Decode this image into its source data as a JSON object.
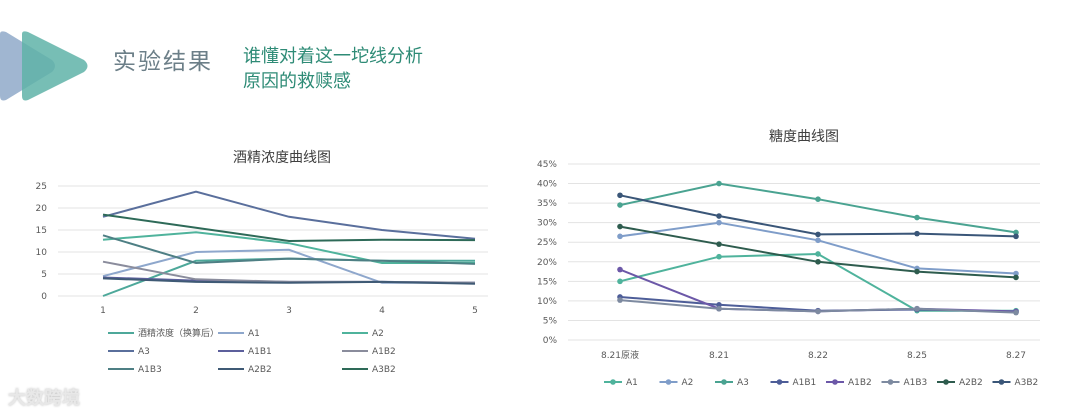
{
  "header": {
    "title": "实验结果",
    "caption_line1": "谁懂对着这一坨线分析",
    "caption_line2": "原因的救赎感"
  },
  "watermark": "大数跨境",
  "colors": {
    "accent_teal": "#2e8b76",
    "title_gray": "#6c7f88",
    "logo_teal": "#5fb3a8",
    "logo_blue": "#8fa9c9"
  },
  "chart_data": [
    {
      "type": "line",
      "title": "酒精浓度曲线图",
      "x": [
        "1",
        "2",
        "3",
        "4",
        "5"
      ],
      "ylim": [
        0,
        25
      ],
      "yticks": [
        "0",
        "5",
        "10",
        "15",
        "20",
        "25"
      ],
      "grid": true,
      "legend": "bottom",
      "series": [
        {
          "name": "酒精浓度（换算后）",
          "color": "#4da89a",
          "values": [
            0,
            8,
            8.5,
            8,
            8
          ]
        },
        {
          "name": "A1",
          "color": "#8ea7cc",
          "values": [
            4.5,
            10,
            10.5,
            3,
            3
          ]
        },
        {
          "name": "A2",
          "color": "#4fb39c",
          "values": [
            12.8,
            14.5,
            12,
            7.5,
            7.5
          ]
        },
        {
          "name": "A3",
          "color": "#5a6f9c",
          "values": [
            18,
            23.7,
            18,
            15,
            13
          ]
        },
        {
          "name": "A1B1",
          "color": "#5c5f9c",
          "values": [
            4.2,
            3.5,
            3.2,
            3.2,
            3
          ]
        },
        {
          "name": "A1B2",
          "color": "#8a8c9c",
          "values": [
            7.8,
            3.8,
            3.2,
            3.2,
            3
          ]
        },
        {
          "name": "A1B3",
          "color": "#4e7f84",
          "values": [
            13.8,
            7.5,
            8.5,
            8,
            7.3
          ]
        },
        {
          "name": "A2B2",
          "color": "#3f5a75",
          "values": [
            4,
            3.2,
            3,
            3.2,
            2.8
          ]
        },
        {
          "name": "A3B2",
          "color": "#2e6a58",
          "values": [
            18.5,
            15.5,
            12.5,
            12.8,
            12.7
          ]
        }
      ]
    },
    {
      "type": "line",
      "title": "糖度曲线图",
      "x": [
        "8.21原液",
        "8.21",
        "8.22",
        "8.25",
        "8.27"
      ],
      "ylim": [
        0,
        45
      ],
      "yticks": [
        "0%",
        "5%",
        "10%",
        "15%",
        "20%",
        "25%",
        "30%",
        "35%",
        "40%",
        "45%"
      ],
      "grid": true,
      "legend": "bottom",
      "series": [
        {
          "name": "A1",
          "color": "#4fb39c",
          "values": [
            15,
            21.3,
            22,
            7.5,
            7.5
          ]
        },
        {
          "name": "A2",
          "color": "#7f9dc9",
          "values": [
            26.5,
            30,
            25.5,
            18.3,
            17
          ]
        },
        {
          "name": "A3",
          "color": "#4aa391",
          "values": [
            34.5,
            40,
            36,
            31.3,
            27.5
          ]
        },
        {
          "name": "A1B1",
          "color": "#4d5d98",
          "values": [
            11,
            9,
            7.5,
            7.8,
            7.2
          ]
        },
        {
          "name": "A1B2",
          "color": "#6c58a8",
          "values": [
            18,
            8,
            7.3,
            8,
            7.3
          ]
        },
        {
          "name": "A1B3",
          "color": "#7d8aa0",
          "values": [
            10.2,
            8,
            7.3,
            8,
            7
          ]
        },
        {
          "name": "A2B2",
          "color": "#2e5c4e",
          "values": [
            29,
            24.5,
            20,
            17.5,
            16
          ]
        },
        {
          "name": "A3B2",
          "color": "#3a5678",
          "values": [
            37,
            31.7,
            27,
            27.2,
            26.5
          ]
        }
      ]
    }
  ]
}
